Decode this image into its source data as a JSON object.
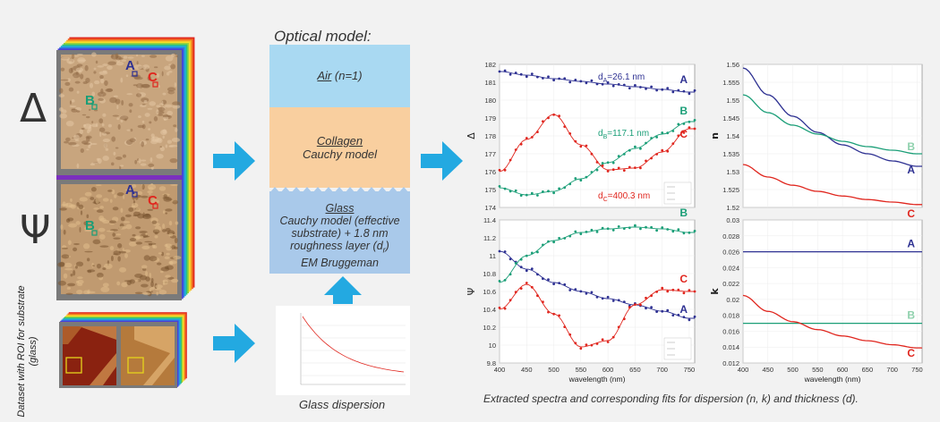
{
  "left": {
    "delta_symbol": "Δ",
    "psi_symbol": "Ψ",
    "roi_label": "Dataset with ROI for substrate (glass)",
    "roi_labels": [
      "A",
      "B",
      "C"
    ],
    "colors": {
      "A": "#2e3192",
      "B": "#1a9e77",
      "C": "#e0261e"
    }
  },
  "model": {
    "title": "Optical model:",
    "air": {
      "title": "Air",
      "detail": "(n=1)"
    },
    "collagen": {
      "title": "Collagen",
      "detail": "Cauchy model"
    },
    "glass": {
      "title": "Glass",
      "line1": "Cauchy model  (effective",
      "line2": "substrate) + 1.8 nm",
      "line3a": "roughness layer (d",
      "line3sub": "r",
      "line3b": ")",
      "line4": "EM Bruggeman"
    },
    "colors": {
      "air": "#a9d9f2",
      "collagen": "#f9cf9f",
      "glass": "#a9c9ea"
    }
  },
  "glass_dispersion": {
    "caption": "Glass dispersion"
  },
  "charts": {
    "caption": "Extracted spectra and corresponding fits for dispersion (n, k) and thickness (d).",
    "xlabel": "wavelength (nm)",
    "delta": {
      "ylabel": "Δ",
      "ylim": [
        174,
        182
      ],
      "yticks": [
        "182",
        "181",
        "180",
        "179",
        "178",
        "177",
        "176",
        "175",
        "174"
      ],
      "ann": {
        "A": {
          "pre": "d",
          "sub": "A",
          "val": "=26.1 nm"
        },
        "B": {
          "pre": "d",
          "sub": "B",
          "val": "=117.1 nm"
        },
        "C": {
          "pre": "d",
          "sub": "C",
          "val": "=400.3 nm"
        }
      }
    },
    "psi": {
      "ylabel": "Ψ",
      "ylim": [
        9.8,
        11.4
      ],
      "yticks": [
        "11.4",
        "11.2",
        "11",
        "10.8",
        "10.6",
        "10.4",
        "10.2",
        "10",
        "9.8"
      ]
    },
    "n": {
      "ylabel": "n",
      "ylim": [
        1.52,
        1.56
      ],
      "yticks": [
        "1.56",
        "1.555",
        "1.55",
        "1.545",
        "1.54",
        "1.535",
        "1.53",
        "1.525",
        "1.52"
      ]
    },
    "k": {
      "ylabel": "k",
      "ylim": [
        0.012,
        0.03
      ],
      "yticks": [
        "0.03",
        "0.028",
        "0.026",
        "0.024",
        "0.022",
        "0.02",
        "0.018",
        "0.016",
        "0.014",
        "0.012"
      ]
    },
    "xticks": [
      "400",
      "450",
      "500",
      "550",
      "600",
      "650",
      "700",
      "750"
    ],
    "xlim": [
      400,
      760
    ],
    "series_labels": [
      "A",
      "B",
      "C"
    ]
  },
  "chart_data": [
    {
      "type": "line",
      "ylabel": "Δ",
      "xlabel": "",
      "xlim": [
        400,
        760
      ],
      "ylim": [
        174,
        182
      ],
      "series": [
        {
          "name": "A",
          "x": [
            400,
            450,
            500,
            550,
            600,
            650,
            700,
            750
          ],
          "values": [
            181.6,
            181.4,
            181.2,
            181.05,
            180.9,
            180.75,
            180.6,
            180.45
          ]
        },
        {
          "name": "B",
          "x": [
            400,
            450,
            500,
            550,
            600,
            650,
            700,
            750
          ],
          "values": [
            175.1,
            174.7,
            174.9,
            175.6,
            176.5,
            177.3,
            178.1,
            178.8
          ]
        },
        {
          "name": "C",
          "x": [
            400,
            450,
            500,
            550,
            600,
            650,
            700,
            750
          ],
          "values": [
            176.0,
            177.8,
            179.2,
            177.5,
            176.1,
            176.2,
            177.1,
            178.4
          ]
        }
      ]
    },
    {
      "type": "line",
      "ylabel": "Ψ",
      "xlabel": "wavelength (nm)",
      "xlim": [
        400,
        760
      ],
      "ylim": [
        9.8,
        11.4
      ],
      "series": [
        {
          "name": "A",
          "x": [
            400,
            450,
            500,
            550,
            600,
            650,
            700,
            750
          ],
          "values": [
            11.05,
            10.85,
            10.7,
            10.6,
            10.52,
            10.45,
            10.38,
            10.3
          ]
        },
        {
          "name": "B",
          "x": [
            400,
            450,
            500,
            550,
            600,
            650,
            700,
            750
          ],
          "values": [
            10.7,
            11.0,
            11.17,
            11.26,
            11.3,
            11.32,
            11.3,
            11.26
          ]
        },
        {
          "name": "C",
          "x": [
            400,
            450,
            500,
            550,
            600,
            650,
            700,
            750
          ],
          "values": [
            10.4,
            10.68,
            10.35,
            9.98,
            10.05,
            10.45,
            10.62,
            10.6
          ]
        }
      ]
    },
    {
      "type": "line",
      "ylabel": "n",
      "xlabel": "",
      "xlim": [
        400,
        760
      ],
      "ylim": [
        1.52,
        1.56
      ],
      "series": [
        {
          "name": "A",
          "x": [
            400,
            450,
            500,
            550,
            600,
            650,
            700,
            750
          ],
          "values": [
            1.559,
            1.5515,
            1.5455,
            1.541,
            1.5375,
            1.535,
            1.533,
            1.5315
          ]
        },
        {
          "name": "B",
          "x": [
            400,
            450,
            500,
            550,
            600,
            650,
            700,
            750
          ],
          "values": [
            1.5515,
            1.5465,
            1.543,
            1.5405,
            1.5385,
            1.537,
            1.536,
            1.535
          ]
        },
        {
          "name": "C",
          "x": [
            400,
            450,
            500,
            550,
            600,
            650,
            700,
            750
          ],
          "values": [
            1.532,
            1.5285,
            1.5262,
            1.5245,
            1.5232,
            1.5222,
            1.5215,
            1.5208
          ]
        }
      ]
    },
    {
      "type": "line",
      "ylabel": "k",
      "xlabel": "wavelength (nm)",
      "xlim": [
        400,
        760
      ],
      "ylim": [
        0.012,
        0.03
      ],
      "series": [
        {
          "name": "A",
          "x": [
            400,
            750
          ],
          "values": [
            0.026,
            0.026
          ]
        },
        {
          "name": "B",
          "x": [
            400,
            750
          ],
          "values": [
            0.017,
            0.017
          ]
        },
        {
          "name": "C",
          "x": [
            400,
            450,
            500,
            550,
            600,
            650,
            700,
            750
          ],
          "values": [
            0.0205,
            0.0185,
            0.0172,
            0.0162,
            0.0154,
            0.0148,
            0.0143,
            0.0139
          ]
        }
      ]
    }
  ]
}
